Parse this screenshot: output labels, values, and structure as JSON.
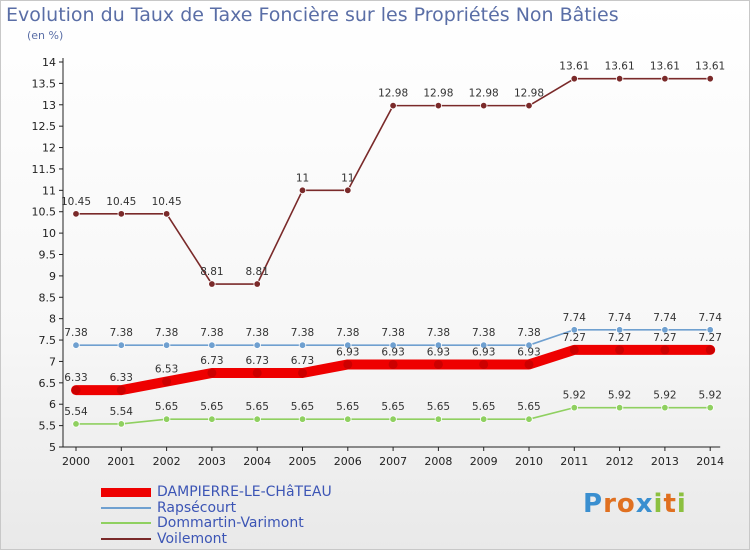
{
  "chart_data": {
    "type": "line",
    "title": "Evolution du Taux de Taxe Foncière sur les Propriétés Non Bâties",
    "unit_label": "(en %)",
    "xlabel": "",
    "ylabel": "",
    "ylim": [
      5,
      14
    ],
    "y_ticks": [
      "5",
      "5.5",
      "6",
      "6.5",
      "7",
      "7.5",
      "8",
      "8.5",
      "9",
      "9.5",
      "10",
      "10.5",
      "11",
      "11.5",
      "12",
      "12.5",
      "13",
      "13.5",
      "14"
    ],
    "x": [
      "2000",
      "2001",
      "2002",
      "2003",
      "2004",
      "2005",
      "2006",
      "2007",
      "2008",
      "2009",
      "2010",
      "2011",
      "2012",
      "2013",
      "2014"
    ],
    "series": [
      {
        "name": "DAMPIERRE-LE-CHâTEAU",
        "color": "#ee0000",
        "values": [
          6.33,
          6.33,
          6.53,
          6.73,
          6.73,
          6.73,
          6.93,
          6.93,
          6.93,
          6.93,
          6.93,
          7.27,
          7.27,
          7.27,
          7.27
        ],
        "labels": [
          "6.33",
          "6.33",
          "6.53",
          "6.73",
          "6.73",
          "6.73",
          "6.93",
          "6.93",
          "6.93",
          "6.93",
          "6.93",
          "7.27",
          "7.27",
          "7.27",
          "7.27"
        ]
      },
      {
        "name": "Rapsécourt",
        "color": "#6fa0d0",
        "values": [
          7.38,
          7.38,
          7.38,
          7.38,
          7.38,
          7.38,
          7.38,
          7.38,
          7.38,
          7.38,
          7.38,
          7.74,
          7.74,
          7.74,
          7.74
        ],
        "labels": [
          "7.38",
          "7.38",
          "7.38",
          "7.38",
          "7.38",
          "7.38",
          "7.38",
          "7.38",
          "7.38",
          "7.38",
          "7.38",
          "7.74",
          "7.74",
          "7.74",
          "7.74"
        ]
      },
      {
        "name": "Dommartin-Varimont",
        "color": "#8fd060",
        "values": [
          5.54,
          5.54,
          5.65,
          5.65,
          5.65,
          5.65,
          5.65,
          5.65,
          5.65,
          5.65,
          5.65,
          5.92,
          5.92,
          5.92,
          5.92
        ],
        "labels": [
          "5.54",
          "5.54",
          "5.65",
          "5.65",
          "5.65",
          "5.65",
          "5.65",
          "5.65",
          "5.65",
          "5.65",
          "5.65",
          "5.92",
          "5.92",
          "5.92",
          "5.92"
        ]
      },
      {
        "name": "Voilemont",
        "color": "#7a2a2a",
        "values": [
          10.45,
          10.45,
          10.45,
          8.81,
          8.81,
          11,
          11,
          12.98,
          12.98,
          12.98,
          12.98,
          13.61,
          13.61,
          13.61,
          13.61
        ],
        "labels": [
          "10.45",
          "10.45",
          "10.45",
          "8.81",
          "8.81",
          "11",
          "11",
          "12.98",
          "12.98",
          "12.98",
          "12.98",
          "13.61",
          "13.61",
          "13.61",
          "13.61"
        ]
      }
    ],
    "legend_position": "bottom-left",
    "grid": false
  },
  "logo": {
    "letters": [
      "P",
      "r",
      "o",
      "x",
      "i",
      "t",
      "i"
    ],
    "colors": [
      "#3a8fd0",
      "#e07020",
      "#e07020",
      "#3a8fd0",
      "#8cc040",
      "#e07020",
      "#8cc040"
    ]
  }
}
